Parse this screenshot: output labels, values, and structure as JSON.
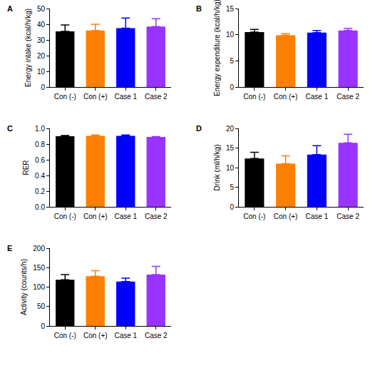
{
  "chart_data": [
    {
      "type": "bar",
      "title": "A",
      "ylabel": "Energy intake (kcal/h/kg)",
      "categories": [
        "Con (-)",
        "Con (+)",
        "Case 1",
        "Case 2"
      ],
      "values": [
        35.5,
        36,
        37.5,
        38.5
      ],
      "errors": [
        4,
        4,
        6.5,
        5
      ],
      "colors": [
        "#000000",
        "#ff8000",
        "#0000ff",
        "#9933ff"
      ],
      "ylim": [
        0,
        50
      ],
      "yticks": [
        0,
        10,
        20,
        30,
        40,
        50
      ],
      "grid": false
    },
    {
      "type": "bar",
      "title": "B",
      "ylabel": "Energy expenditure (kcal/h/kg)",
      "categories": [
        "Con (-)",
        "Con (+)",
        "Case 1",
        "Case 2"
      ],
      "values": [
        10.5,
        9.9,
        10.4,
        10.8
      ],
      "errors": [
        0.5,
        0.3,
        0.4,
        0.4
      ],
      "colors": [
        "#000000",
        "#ff8000",
        "#0000ff",
        "#9933ff"
      ],
      "ylim": [
        0,
        15
      ],
      "yticks": [
        0,
        5,
        10,
        15
      ],
      "grid": false
    },
    {
      "type": "bar",
      "title": "C",
      "ylabel": "RER",
      "categories": [
        "Con (-)",
        "Con (+)",
        "Case 1",
        "Case 2"
      ],
      "values": [
        0.9,
        0.905,
        0.905,
        0.89
      ],
      "errors": [
        0.01,
        0.01,
        0.01,
        0.005
      ],
      "colors": [
        "#000000",
        "#ff8000",
        "#0000ff",
        "#9933ff"
      ],
      "ylim": [
        0,
        1.0
      ],
      "yticks": [
        {
          "value": 0,
          "label": "0.0"
        },
        0.2,
        0.4,
        0.6,
        0.8,
        {
          "value": 1.0,
          "label": "1.0"
        }
      ],
      "grid": false
    },
    {
      "type": "bar",
      "title": "D",
      "ylabel": "Drink (ml/h/kg)",
      "categories": [
        "Con (-)",
        "Con (+)",
        "Case 1",
        "Case 2"
      ],
      "values": [
        12.3,
        11,
        13.3,
        16.3
      ],
      "errors": [
        1.6,
        2,
        2.3,
        2.2
      ],
      "colors": [
        "#000000",
        "#ff8000",
        "#0000ff",
        "#9933ff"
      ],
      "ylim": [
        0,
        20
      ],
      "yticks": [
        0,
        5,
        10,
        15,
        20
      ],
      "grid": false
    },
    {
      "type": "bar",
      "title": "E",
      "ylabel": "Activity (counts/h)",
      "categories": [
        "Con (-)",
        "Con (+)",
        "Case 1",
        "Case 2"
      ],
      "values": [
        119,
        128,
        114,
        132
      ],
      "errors": [
        13,
        14,
        9,
        21
      ],
      "colors": [
        "#000000",
        "#ff8000",
        "#0000ff",
        "#9933ff"
      ],
      "ylim": [
        0,
        200
      ],
      "yticks": [
        0,
        50,
        100,
        150,
        200
      ],
      "grid": false
    }
  ]
}
